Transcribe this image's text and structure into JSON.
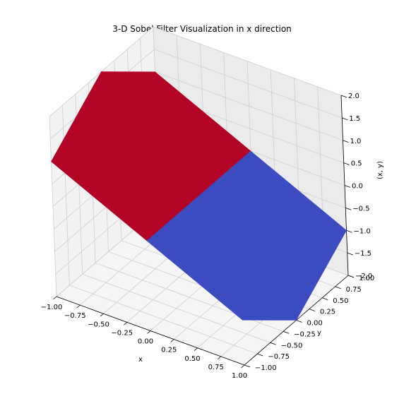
{
  "chart_data": {
    "type": "surface3d",
    "title": "3-D Sobel Filter Visualization in x direction",
    "xlabel": "x",
    "ylabel": "y",
    "zlabel": "(x, y)",
    "xlim": [
      -1,
      1
    ],
    "ylim": [
      -1,
      1
    ],
    "zlim": [
      -2,
      2
    ],
    "xticks": [
      "−1.00",
      "−0.75",
      "−0.50",
      "−0.25",
      "0.00",
      "0.25",
      "0.50",
      "0.75",
      "1.00"
    ],
    "yticks": [
      "−1.00",
      "−0.75",
      "−0.50",
      "−0.25",
      "0.00",
      "0.25",
      "0.50",
      "0.75",
      "1.00"
    ],
    "zticks": [
      "−2.0",
      "−1.5",
      "−1.0",
      "−0.5",
      "0.0",
      "0.5",
      "1.0",
      "1.5",
      "2.0"
    ],
    "grid": true,
    "colormap": "coolwarm",
    "x": [
      -1,
      0,
      1
    ],
    "y": [
      -1,
      0,
      1
    ],
    "z": [
      [
        1,
        0,
        -1
      ],
      [
        2,
        0,
        -2
      ],
      [
        1,
        0,
        -1
      ]
    ],
    "colors": {
      "positive": "#b40426",
      "negative": "#3b4cc0"
    }
  }
}
